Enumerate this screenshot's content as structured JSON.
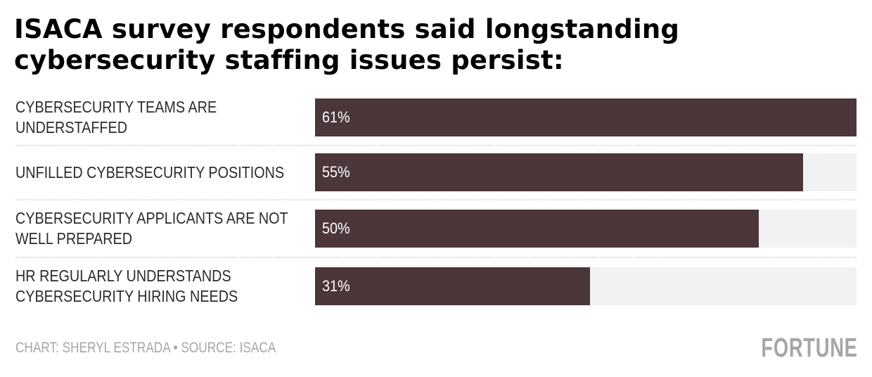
{
  "title": "ISACA survey respondents said longstanding cybersecurity staffing issues persist:",
  "colors": {
    "bar": "#4b363a",
    "track": "#f2f2f2",
    "footer": "#a6a6a6"
  },
  "chart_data": {
    "type": "bar",
    "orientation": "horizontal",
    "title": "ISACA survey respondents said longstanding cybersecurity staffing issues persist:",
    "categories": [
      "CYBERSECURITY TEAMS ARE UNDERSTAFFED",
      "UNFILLED CYBERSECURITY POSITIONS",
      "CYBERSECURITY APPLICANTS ARE NOT WELL PREPARED",
      "HR REGULARLY UNDERSTANDS CYBERSECURITY HIRING NEEDS"
    ],
    "label_lines": [
      [
        "CYBERSECURITY TEAMS ARE",
        "UNDERSTAFFED"
      ],
      [
        "UNFILLED CYBERSECURITY POSITIONS"
      ],
      [
        "CYBERSECURITY APPLICANTS ARE NOT",
        "WELL PREPARED"
      ],
      [
        "HR REGULARLY UNDERSTANDS",
        "CYBERSECURITY HIRING NEEDS"
      ]
    ],
    "values": [
      61,
      55,
      50,
      31
    ],
    "value_labels": [
      "61%",
      "55%",
      "50%",
      "31%"
    ],
    "unit": "%",
    "xlim": [
      0,
      61
    ],
    "xlabel": "",
    "ylabel": "",
    "grid": false,
    "legend": "none"
  },
  "footer": {
    "credit": "CHART: SHERYL ESTRADA • SOURCE: ISACA",
    "logo": "FORTUNE"
  }
}
